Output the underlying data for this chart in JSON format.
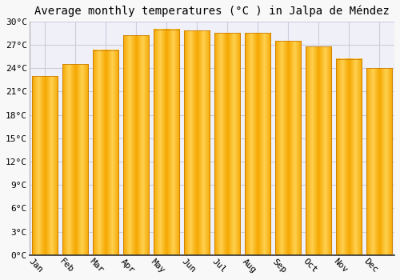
{
  "title": "Average monthly temperatures (°C ) in Jalpa de Méndez",
  "months": [
    "Jan",
    "Feb",
    "Mar",
    "Apr",
    "May",
    "Jun",
    "Jul",
    "Aug",
    "Sep",
    "Oct",
    "Nov",
    "Dec"
  ],
  "values": [
    23.0,
    24.5,
    26.3,
    28.2,
    29.0,
    28.8,
    28.5,
    28.5,
    27.5,
    26.8,
    25.2,
    24.0
  ],
  "bar_color_left": "#F5A800",
  "bar_color_center": "#FFD050",
  "bar_color_right": "#E08000",
  "bar_edge_color": "#C07000",
  "ylim": [
    0,
    30
  ],
  "yticks": [
    0,
    3,
    6,
    9,
    12,
    15,
    18,
    21,
    24,
    27,
    30
  ],
  "ytick_labels": [
    "0°C",
    "3°C",
    "6°C",
    "9°C",
    "12°C",
    "15°C",
    "18°C",
    "21°C",
    "24°C",
    "27°C",
    "30°C"
  ],
  "background_color": "#f8f8f8",
  "plot_bg_color": "#f0f0f8",
  "grid_color": "#ccccdd",
  "title_fontsize": 10,
  "tick_fontsize": 8,
  "xtick_rotation": -45,
  "bar_width": 0.85
}
